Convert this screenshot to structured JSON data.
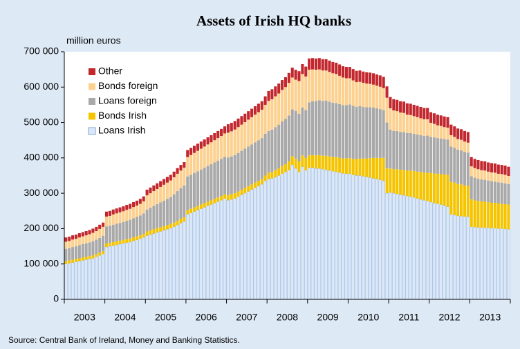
{
  "chart_data": {
    "type": "stacked_bar",
    "title": "Assets of Irish HQ banks",
    "y_label": "million euros",
    "source": "Source: Central Bank of Ireland, Money and Banking Statistics.",
    "categories": [
      "2003",
      null,
      null,
      null,
      null,
      null,
      null,
      null,
      null,
      null,
      null,
      null,
      "2004",
      null,
      null,
      null,
      null,
      null,
      null,
      null,
      null,
      null,
      null,
      null,
      "2005",
      null,
      null,
      null,
      null,
      null,
      null,
      null,
      null,
      null,
      null,
      null,
      "2006",
      null,
      null,
      null,
      null,
      null,
      null,
      null,
      null,
      null,
      null,
      null,
      "2007",
      null,
      null,
      null,
      null,
      null,
      null,
      null,
      null,
      null,
      null,
      null,
      "2008",
      null,
      null,
      null,
      null,
      null,
      null,
      null,
      null,
      null,
      null,
      null,
      "2009",
      null,
      null,
      null,
      null,
      null,
      null,
      null,
      null,
      null,
      null,
      null,
      "2010",
      null,
      null,
      null,
      null,
      null,
      null,
      null,
      null,
      null,
      null,
      null,
      "2011",
      null,
      null,
      null,
      null,
      null,
      null,
      null,
      null,
      null,
      null,
      null,
      "2012",
      null,
      null,
      null,
      null,
      null,
      null,
      null,
      null,
      null,
      null,
      null,
      "2013",
      null,
      null,
      null,
      null,
      null,
      null,
      null,
      null,
      null,
      null,
      null
    ],
    "ylim": [
      0,
      700000
    ],
    "yticks": [
      0,
      {
        "value": 100000,
        "label": "100 000"
      },
      {
        "value": 200000,
        "label": "200 000"
      },
      {
        "value": 300000,
        "label": "300 000"
      },
      {
        "value": 400000,
        "label": "400 000"
      },
      {
        "value": 500000,
        "label": "500 000"
      },
      {
        "value": 600000,
        "label": "600 000"
      },
      {
        "value": 700000,
        "label": "700 000"
      }
    ],
    "legend": "upper left",
    "series": [
      {
        "name": "Loans Irish",
        "color": "#dce8f7",
        "values": [
          100000,
          102000,
          104000,
          106000,
          108000,
          110000,
          112000,
          114000,
          116000,
          120000,
          124000,
          128000,
          148000,
          150000,
          152000,
          154000,
          156000,
          158000,
          160000,
          162000,
          165000,
          168000,
          171000,
          175000,
          180000,
          183000,
          186000,
          189000,
          192000,
          195000,
          198000,
          201000,
          205000,
          210000,
          215000,
          220000,
          240000,
          244000,
          248000,
          252000,
          256000,
          260000,
          264000,
          268000,
          272000,
          276000,
          280000,
          285000,
          280000,
          282000,
          285000,
          290000,
          295000,
          300000,
          305000,
          310000,
          315000,
          320000,
          325000,
          335000,
          340000,
          342000,
          345000,
          350000,
          355000,
          360000,
          365000,
          380000,
          370000,
          360000,
          375000,
          365000,
          372000,
          372000,
          370000,
          370000,
          368000,
          366000,
          364000,
          362000,
          360000,
          358000,
          356000,
          355000,
          355000,
          352000,
          350000,
          350000,
          348000,
          346000,
          344000,
          342000,
          340000,
          338000,
          335000,
          300000,
          302000,
          300000,
          298000,
          296000,
          294000,
          292000,
          290000,
          288000,
          285000,
          282000,
          280000,
          278000,
          275000,
          272000,
          270000,
          268000,
          265000,
          262000,
          240000,
          238000,
          236000,
          235000,
          234000,
          233000,
          205000,
          204000,
          203000,
          203000,
          202000,
          202000,
          201000,
          201000,
          200000,
          200000,
          199000,
          198000
        ]
      },
      {
        "name": "Bonds Irish",
        "color": "#f5c400",
        "values": [
          8000,
          8000,
          8000,
          8000,
          8000,
          8000,
          8000,
          8000,
          8000,
          8000,
          8000,
          8000,
          10000,
          10000,
          10000,
          10000,
          10000,
          10000,
          10000,
          10000,
          10000,
          10000,
          10000,
          10000,
          12000,
          12000,
          12000,
          12000,
          12000,
          12000,
          12000,
          12000,
          12000,
          12000,
          12000,
          12000,
          12000,
          12000,
          12000,
          12000,
          12000,
          12000,
          12000,
          12000,
          12000,
          12000,
          12000,
          12000,
          15000,
          15000,
          15000,
          15000,
          15000,
          15000,
          15000,
          15000,
          15000,
          15000,
          15000,
          15000,
          18000,
          18000,
          20000,
          20000,
          22000,
          22000,
          25000,
          25000,
          28000,
          30000,
          32000,
          35000,
          35000,
          36000,
          37000,
          38000,
          38000,
          40000,
          40000,
          40000,
          42000,
          42000,
          42000,
          44000,
          44000,
          45000,
          46000,
          48000,
          50000,
          52000,
          55000,
          58000,
          60000,
          62000,
          65000,
          70000,
          68000,
          68000,
          70000,
          70000,
          72000,
          72000,
          74000,
          75000,
          76000,
          78000,
          78000,
          80000,
          82000,
          84000,
          85000,
          86000,
          88000,
          90000,
          92000,
          92000,
          90000,
          90000,
          88000,
          88000,
          78000,
          76000,
          75000,
          74000,
          74000,
          73000,
          72000,
          72000,
          71000,
          70000,
          70000,
          70000
        ]
      },
      {
        "name": "Loans foreign",
        "color": "#a9a9a9",
        "values": [
          35000,
          35000,
          36000,
          36000,
          37000,
          38000,
          38000,
          39000,
          40000,
          41000,
          42000,
          44000,
          48000,
          48000,
          49000,
          50000,
          50000,
          51000,
          52000,
          53000,
          54000,
          55000,
          56000,
          58000,
          62000,
          64000,
          66000,
          68000,
          70000,
          72000,
          74000,
          76000,
          80000,
          84000,
          87000,
          90000,
          95000,
          96000,
          97000,
          98000,
          99000,
          100000,
          101000,
          102000,
          103000,
          104000,
          105000,
          106000,
          106000,
          107000,
          108000,
          109000,
          110000,
          111000,
          112000,
          113000,
          114000,
          115000,
          116000,
          118000,
          118000,
          120000,
          122000,
          124000,
          126000,
          128000,
          130000,
          132000,
          135000,
          135000,
          135000,
          135000,
          150000,
          152000,
          154000,
          155000,
          155000,
          156000,
          155000,
          154000,
          153000,
          152000,
          151000,
          150000,
          152000,
          150000,
          148000,
          148000,
          146000,
          145000,
          144000,
          142000,
          140000,
          138000,
          135000,
          130000,
          110000,
          108000,
          108000,
          107000,
          107000,
          106000,
          106000,
          105000,
          105000,
          104000,
          104000,
          105000,
          102000,
          102000,
          101000,
          101000,
          100000,
          100000,
          100000,
          98000,
          97000,
          96000,
          95000,
          94000,
          65000,
          64000,
          63000,
          62000,
          62000,
          61000,
          61000,
          60000,
          60000,
          60000,
          59000,
          58000
        ]
      },
      {
        "name": "Bonds foreign",
        "color": "#fcd190",
        "values": [
          20000,
          20000,
          21000,
          21000,
          22000,
          22000,
          23000,
          23000,
          24000,
          24000,
          25000,
          25000,
          28000,
          28000,
          29000,
          29000,
          30000,
          30000,
          31000,
          31000,
          32000,
          32000,
          33000,
          34000,
          40000,
          41000,
          42000,
          43000,
          44000,
          45000,
          46000,
          47000,
          48000,
          49000,
          50000,
          50000,
          55000,
          56000,
          57000,
          58000,
          59000,
          60000,
          61000,
          62000,
          63000,
          64000,
          65000,
          66000,
          70000,
          71000,
          72000,
          73000,
          74000,
          75000,
          76000,
          77000,
          78000,
          79000,
          80000,
          82000,
          85000,
          86000,
          87000,
          88000,
          89000,
          90000,
          92000,
          90000,
          88000,
          92000,
          95000,
          95000,
          92000,
          90000,
          88000,
          87000,
          86000,
          85000,
          84000,
          83000,
          82000,
          80000,
          78000,
          76000,
          74000,
          72000,
          70000,
          69000,
          68000,
          67000,
          66000,
          65000,
          64000,
          63000,
          62000,
          70000,
          60000,
          58000,
          56000,
          55000,
          54000,
          52000,
          51000,
          50000,
          49000,
          48000,
          47000,
          46000,
          40000,
          38000,
          36000,
          35000,
          34000,
          33000,
          32000,
          31000,
          30000,
          30000,
          29000,
          28000,
          28000,
          27000,
          27000,
          26000,
          26000,
          25000,
          25000,
          25000,
          24000,
          24000,
          24000,
          23000
        ]
      },
      {
        "name": "Other",
        "color": "#c1272d",
        "values": [
          12000,
          12000,
          12000,
          12000,
          12000,
          12000,
          12000,
          12000,
          12000,
          12000,
          12000,
          12000,
          14000,
          14000,
          14000,
          14000,
          14000,
          14000,
          14000,
          14000,
          14000,
          14000,
          14000,
          14000,
          16000,
          16000,
          16000,
          16000,
          16000,
          16000,
          16000,
          16000,
          16000,
          16000,
          16000,
          16000,
          20000,
          20000,
          20000,
          20000,
          20000,
          20000,
          20000,
          20000,
          20000,
          20000,
          20000,
          20000,
          24000,
          24000,
          24000,
          24000,
          24000,
          24000,
          24000,
          24000,
          24000,
          24000,
          24000,
          24000,
          28000,
          28000,
          28000,
          28000,
          28000,
          28000,
          28000,
          28000,
          28000,
          28000,
          28000,
          28000,
          32000,
          32000,
          32000,
          32000,
          32000,
          32000,
          32000,
          32000,
          32000,
          32000,
          32000,
          32000,
          32000,
          32000,
          32000,
          32000,
          32000,
          32000,
          32000,
          32000,
          32000,
          32000,
          32000,
          32000,
          32000,
          32000,
          32000,
          32000,
          32000,
          32000,
          32000,
          32000,
          32000,
          32000,
          32000,
          32000,
          30000,
          30000,
          30000,
          30000,
          30000,
          30000,
          30000,
          30000,
          30000,
          30000,
          30000,
          30000,
          26000,
          26000,
          26000,
          26000,
          26000,
          26000,
          26000,
          26000,
          26000,
          26000,
          26000,
          26000
        ]
      }
    ]
  }
}
